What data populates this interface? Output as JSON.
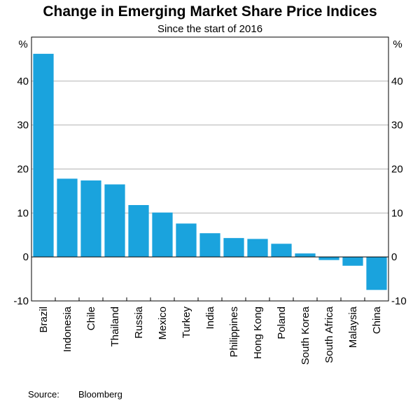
{
  "chart_data": {
    "type": "bar",
    "title": "Change in Emerging Market Share Price Indices",
    "subtitle": "Since the start of 2016",
    "ylabel": "%",
    "ylabel_right": "%",
    "ylim": [
      -10,
      50
    ],
    "yticks": [
      -10,
      0,
      10,
      20,
      30,
      40
    ],
    "grid": true,
    "categories": [
      "Brazil",
      "Indonesia",
      "Chile",
      "Thailand",
      "Russia",
      "Mexico",
      "Turkey",
      "India",
      "Philippines",
      "Hong Kong",
      "Poland",
      "South Korea",
      "South Africa",
      "Malaysia",
      "China"
    ],
    "values": [
      46.2,
      17.8,
      17.4,
      16.5,
      11.8,
      10.1,
      7.6,
      5.4,
      4.3,
      4.1,
      3.0,
      0.8,
      -0.7,
      -2.0,
      -7.5
    ],
    "bar_color": "#1aa3dd",
    "source_label": "Source:",
    "source": "Bloomberg"
  }
}
